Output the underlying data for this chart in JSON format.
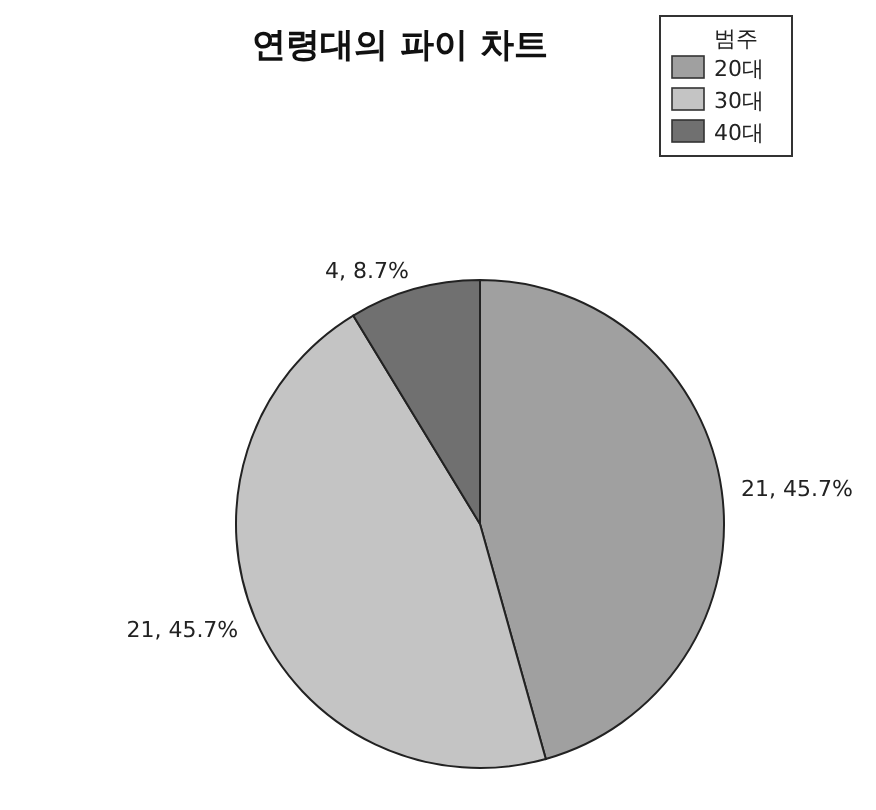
{
  "chart_data": {
    "type": "pie",
    "title": "연령대의 파이 차트",
    "legend_title": "범주",
    "categories": [
      "20대",
      "30대",
      "40대"
    ],
    "values": [
      21,
      21,
      4
    ],
    "value_labels": [
      "21, 45.7%",
      "21, 45.7%",
      "4, 8.7%"
    ],
    "colors": [
      "#a0a0a0",
      "#c4c4c4",
      "#707070"
    ],
    "legend": "top right"
  }
}
